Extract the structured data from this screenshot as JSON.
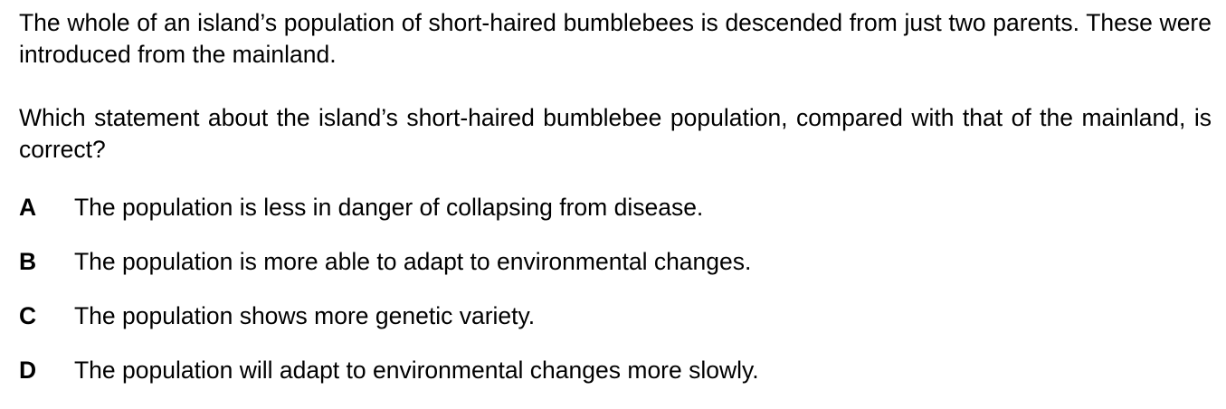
{
  "question": {
    "intro": "The whole of an island’s population of short-haired bumblebees is descended from just two parents. These were introduced from the mainland.",
    "stem": "Which statement about the island’s short-haired bumblebee population, compared with that of the mainland, is correct?"
  },
  "options": [
    {
      "letter": "A",
      "text": "The population is less in danger of collapsing from disease."
    },
    {
      "letter": "B",
      "text": "The population is more able to adapt to environmental changes."
    },
    {
      "letter": "C",
      "text": "The population shows more genetic variety."
    },
    {
      "letter": "D",
      "text": "The population will adapt to environmental changes more slowly."
    }
  ]
}
